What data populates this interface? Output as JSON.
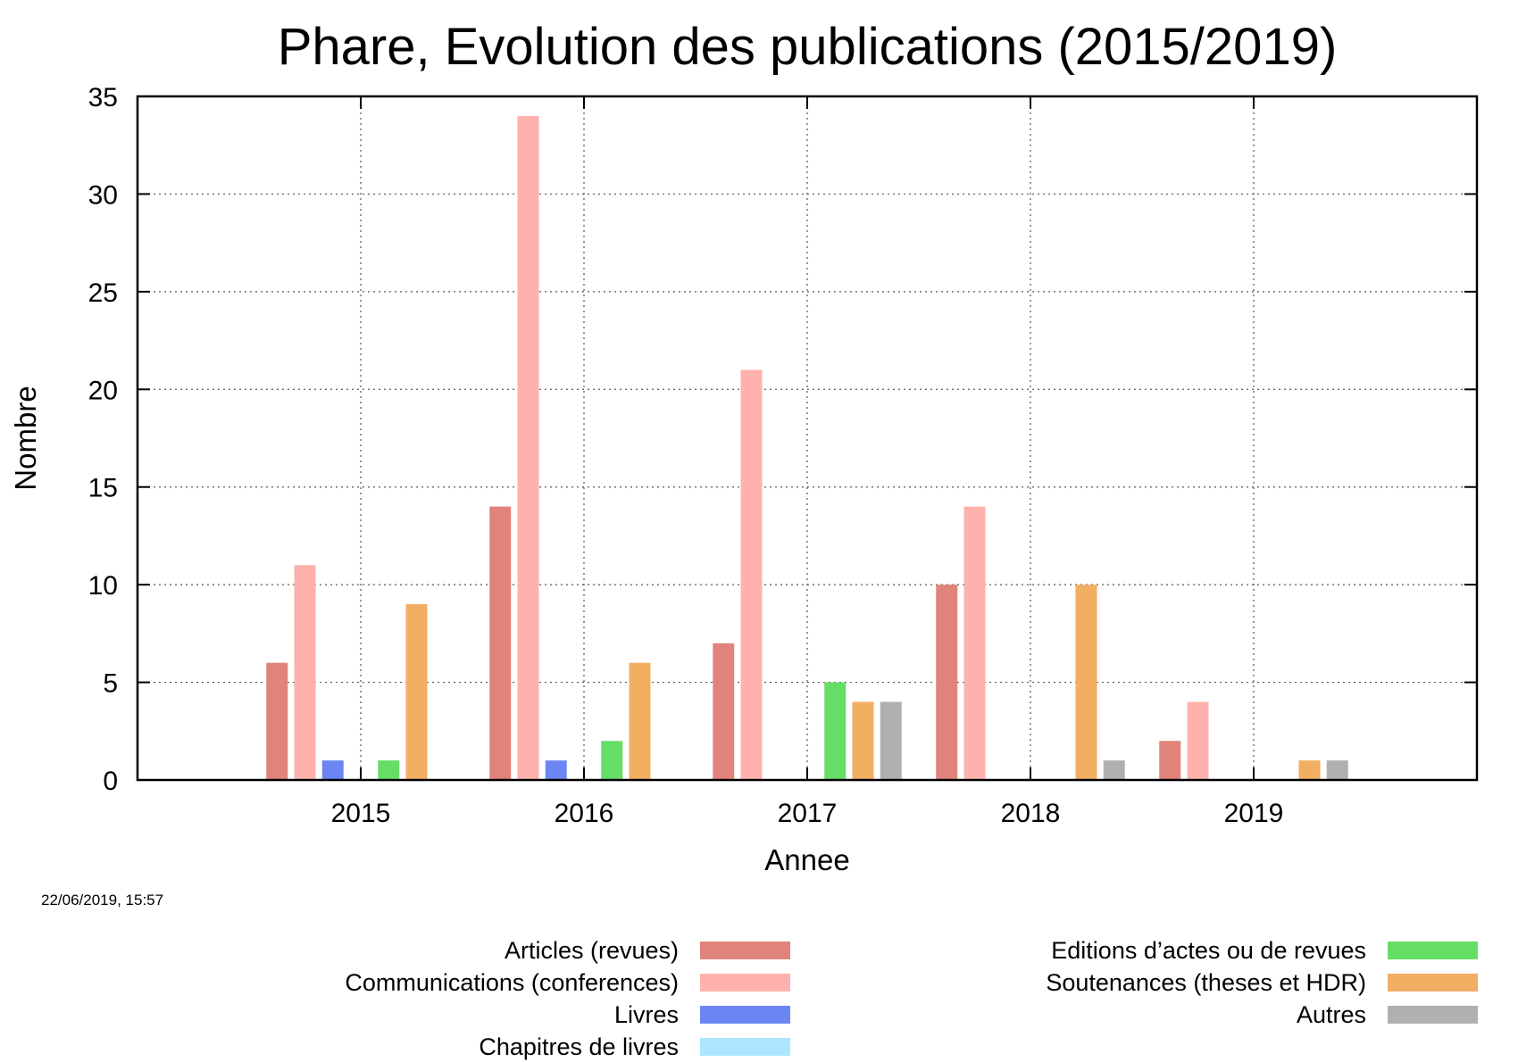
{
  "timestamp": "22/06/2019, 15:57",
  "chart_data": {
    "type": "bar",
    "title": "Phare, Evolution des publications (2015/2019)",
    "xlabel": "Annee",
    "ylabel": "Nombre",
    "ylim": [
      0,
      35
    ],
    "yticks": [
      "0",
      "5",
      "10",
      "15",
      "20",
      "25",
      "30",
      "35"
    ],
    "categories": [
      "2015",
      "2016",
      "2017",
      "2018",
      "2019"
    ],
    "grid": true,
    "legend_position": "bottom",
    "series": [
      {
        "name": "Articles (revues)",
        "color": "#e0837a",
        "values": [
          6,
          14,
          7,
          10,
          2
        ]
      },
      {
        "name": "Communications (conferences)",
        "color": "#ffb2ad",
        "values": [
          11,
          34,
          21,
          14,
          4
        ]
      },
      {
        "name": "Livres",
        "color": "#6b86f2",
        "values": [
          1,
          1,
          0,
          0,
          0
        ]
      },
      {
        "name": "Chapitres de livres",
        "color": "#aee6ff",
        "values": [
          0,
          0,
          0,
          0,
          0
        ]
      },
      {
        "name": "Editions d’actes ou de revues",
        "color": "#66de66",
        "values": [
          1,
          2,
          5,
          0,
          0
        ]
      },
      {
        "name": "Soutenances (theses et HDR)",
        "color": "#f2ae63",
        "values": [
          9,
          6,
          4,
          10,
          1
        ]
      },
      {
        "name": "Autres",
        "color": "#b0b0b0",
        "values": [
          0,
          0,
          4,
          1,
          1
        ]
      }
    ]
  }
}
